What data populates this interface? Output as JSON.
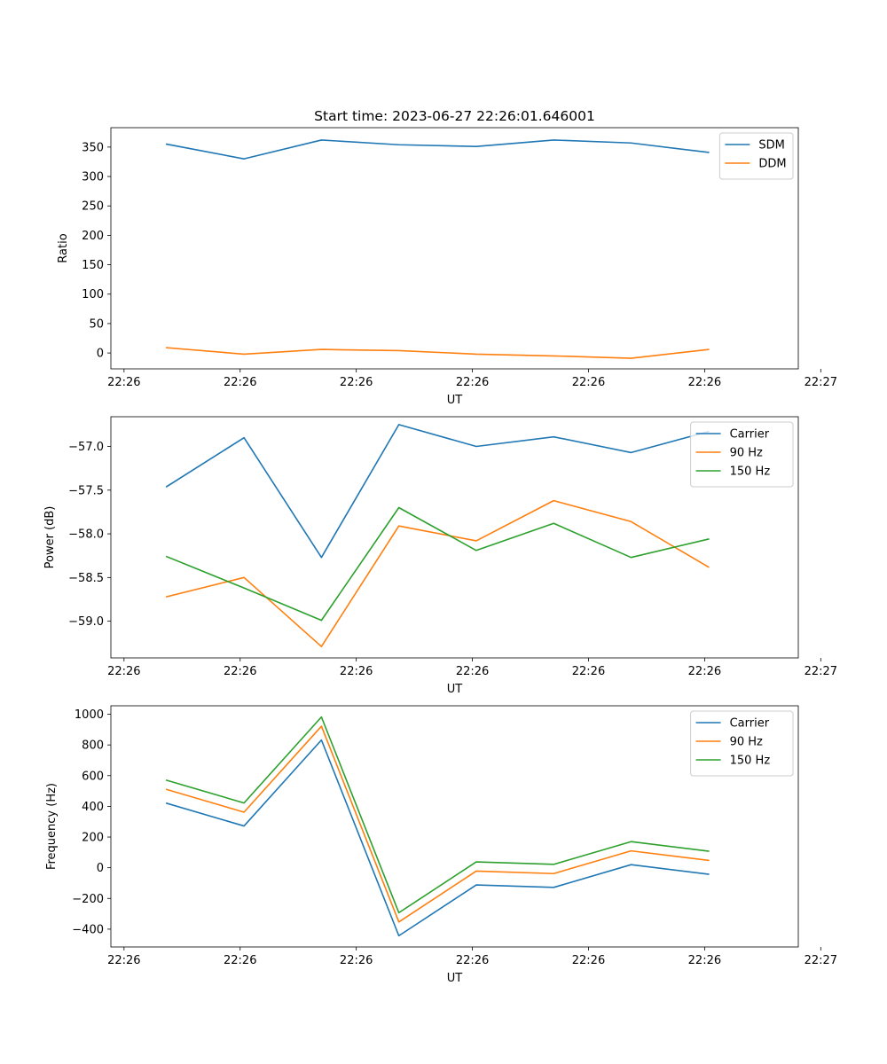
{
  "figure": {
    "title": "Start time: 2023-06-27 22:26:01.646001"
  },
  "chart_data": [
    {
      "type": "line",
      "xlabel": "UT",
      "ylabel": "Ratio",
      "x": [
        1,
        2,
        3,
        4,
        5,
        6,
        7,
        8
      ],
      "xlim": [
        0.28,
        9.16
      ],
      "x_ticks": [
        {
          "v": 0.45,
          "label": "22:26"
        },
        {
          "v": 1.95,
          "label": "22:26"
        },
        {
          "v": 3.45,
          "label": "22:26"
        },
        {
          "v": 4.95,
          "label": "22:26"
        },
        {
          "v": 6.45,
          "label": "22:26"
        },
        {
          "v": 7.95,
          "label": "22:26"
        },
        {
          "v": 9.45,
          "label": "22:27"
        }
      ],
      "ylim": [
        -27,
        383
      ],
      "y_ticks": [
        {
          "v": 0,
          "label": "0"
        },
        {
          "v": 50,
          "label": "50"
        },
        {
          "v": 100,
          "label": "100"
        },
        {
          "v": 150,
          "label": "150"
        },
        {
          "v": 200,
          "label": "200"
        },
        {
          "v": 250,
          "label": "250"
        },
        {
          "v": 300,
          "label": "300"
        },
        {
          "v": 350,
          "label": "350"
        }
      ],
      "legend": "top-right",
      "series": [
        {
          "name": "SDM",
          "color": "#1f77b4",
          "values": [
            355,
            330,
            362,
            354,
            351,
            362,
            357,
            341
          ]
        },
        {
          "name": "DDM",
          "color": "#ff7f0e",
          "values": [
            9,
            -2,
            6,
            4,
            -2,
            -5,
            -9,
            6
          ]
        }
      ]
    },
    {
      "type": "line",
      "xlabel": "UT",
      "ylabel": "Power (dB)",
      "x": [
        1,
        2,
        3,
        4,
        5,
        6,
        7,
        8
      ],
      "xlim": [
        0.28,
        9.16
      ],
      "x_ticks": [
        {
          "v": 0.45,
          "label": "22:26"
        },
        {
          "v": 1.95,
          "label": "22:26"
        },
        {
          "v": 3.45,
          "label": "22:26"
        },
        {
          "v": 4.95,
          "label": "22:26"
        },
        {
          "v": 6.45,
          "label": "22:26"
        },
        {
          "v": 7.95,
          "label": "22:26"
        },
        {
          "v": 9.45,
          "label": "22:27"
        }
      ],
      "ylim": [
        -59.42,
        -56.66
      ],
      "y_ticks": [
        {
          "v": -59.0,
          "label": "−59.0"
        },
        {
          "v": -58.5,
          "label": "−58.5"
        },
        {
          "v": -58.0,
          "label": "−58.0"
        },
        {
          "v": -57.5,
          "label": "−57.5"
        },
        {
          "v": -57.0,
          "label": "−57.0"
        }
      ],
      "legend": "top-right",
      "series": [
        {
          "name": "Carrier",
          "color": "#1f77b4",
          "values": [
            -57.46,
            -56.9,
            -58.27,
            -56.75,
            -57.0,
            -56.89,
            -57.07,
            -56.83
          ]
        },
        {
          "name": "90 Hz",
          "color": "#ff7f0e",
          "values": [
            -58.72,
            -58.5,
            -59.29,
            -57.91,
            -58.08,
            -57.62,
            -57.86,
            -58.38
          ]
        },
        {
          "name": "150 Hz",
          "color": "#2ca02c",
          "values": [
            -58.26,
            -58.62,
            -58.99,
            -57.7,
            -58.19,
            -57.88,
            -58.27,
            -58.06
          ]
        }
      ]
    },
    {
      "type": "line",
      "xlabel": "UT",
      "ylabel": "Frequency (Hz)",
      "x": [
        1,
        2,
        3,
        4,
        5,
        6,
        7,
        8
      ],
      "xlim": [
        0.28,
        9.16
      ],
      "x_ticks": [
        {
          "v": 0.45,
          "label": "22:26"
        },
        {
          "v": 1.95,
          "label": "22:26"
        },
        {
          "v": 3.45,
          "label": "22:26"
        },
        {
          "v": 4.95,
          "label": "22:26"
        },
        {
          "v": 6.45,
          "label": "22:26"
        },
        {
          "v": 7.95,
          "label": "22:26"
        },
        {
          "v": 9.45,
          "label": "22:27"
        }
      ],
      "ylim": [
        -516,
        1055
      ],
      "y_ticks": [
        {
          "v": -400,
          "label": "−400"
        },
        {
          "v": -200,
          "label": "−200"
        },
        {
          "v": 0,
          "label": "0"
        },
        {
          "v": 200,
          "label": "200"
        },
        {
          "v": 400,
          "label": "400"
        },
        {
          "v": 600,
          "label": "600"
        },
        {
          "v": 800,
          "label": "800"
        },
        {
          "v": 1000,
          "label": "1000"
        }
      ],
      "legend": "top-right",
      "series": [
        {
          "name": "Carrier",
          "color": "#1f77b4",
          "values": [
            420,
            272,
            832,
            -443,
            -112,
            -128,
            20,
            -42
          ]
        },
        {
          "name": "90 Hz",
          "color": "#ff7f0e",
          "values": [
            510,
            362,
            922,
            -353,
            -22,
            -38,
            110,
            48
          ]
        },
        {
          "name": "150 Hz",
          "color": "#2ca02c",
          "values": [
            570,
            422,
            982,
            -293,
            38,
            22,
            170,
            108
          ]
        }
      ]
    }
  ]
}
